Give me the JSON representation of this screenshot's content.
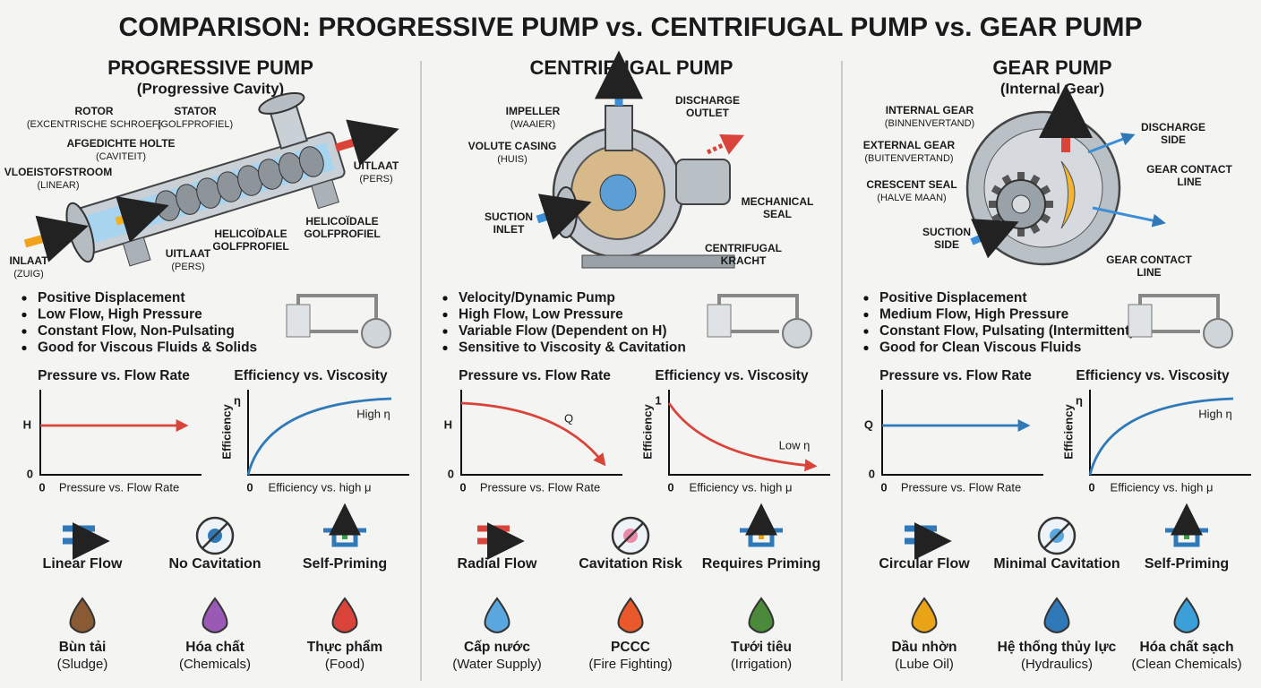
{
  "title": "COMPARISON: PROGRESSIVE PUMP vs. CENTRIFUGAL PUMP vs. GEAR PUMP",
  "columns": [
    {
      "title": "PROGRESSIVE PUMP",
      "subtitle": "(Progressive Cavity)",
      "parts": [
        {
          "label": "ROTOR",
          "sub": "(EXCENTRISCHE SCHROEF)"
        },
        {
          "label": "STATOR",
          "sub": "(GOLFPROFIEL)"
        },
        {
          "label": "AFGEDICHTE HOLTE",
          "sub": "(CAVITEIT)"
        },
        {
          "label": "VLOEISTOFSTROOM",
          "sub": "(LINEAR)"
        },
        {
          "label": "UITLAAT",
          "sub": "(PERS)"
        },
        {
          "label": "HELICOÏDALE",
          "sub": "GOLFPROFIEL"
        },
        {
          "label": "HELICOÏDALE",
          "sub": "GOLFPROFIEL"
        },
        {
          "label": "UITLAAT",
          "sub": "(PERS)"
        },
        {
          "label": "INLAAT",
          "sub": "(ZUIG)"
        }
      ],
      "bullets": [
        "Positive Displacement",
        "Low Flow, High Pressure",
        "Constant Flow, Non-Pulsating",
        "Good for Viscous Fluids & Solids"
      ],
      "charts": [
        {
          "title": "Pressure vs. Flow Rate",
          "curve": "flat",
          "color": "#d9433a",
          "y_label": "H",
          "y_zero": "0",
          "x_zero": "0",
          "caption": "Pressure vs. Flow Rate"
        },
        {
          "title": "Efficiency vs. Viscosity",
          "curve": "rising",
          "color": "#2f79b8",
          "y_label": "Efficiency",
          "y_top": "η",
          "x_zero": "0",
          "curve_label": "High η",
          "caption": "Efficiency vs. high μ"
        }
      ],
      "features": [
        "Linear Flow",
        "No Cavitation",
        "Self-Priming"
      ],
      "applications": [
        {
          "name": "Bùn tải",
          "sub": "(Sludge)"
        },
        {
          "name": "Hóa chất",
          "sub": "(Chemicals)"
        },
        {
          "name": "Thực phẩm",
          "sub": "(Food)"
        }
      ]
    },
    {
      "title": "CENTRIFUGAL PUMP",
      "parts": [
        {
          "label": "IMPELLER",
          "sub": "(WAAIER)"
        },
        {
          "label": "DISCHARGE",
          "sub": "OUTLET"
        },
        {
          "label": "VOLUTE CASING",
          "sub": "(HUIS)"
        },
        {
          "label": "MECHANICAL",
          "sub": "SEAL"
        },
        {
          "label": "SUCTION",
          "sub": "INLET"
        },
        {
          "label": "CENTRIFUGAL",
          "sub": "KRACHT"
        }
      ],
      "bullets": [
        "Velocity/Dynamic Pump",
        "High Flow, Low Pressure",
        "Variable Flow (Dependent on H)",
        "Sensitive to Viscosity & Cavitation"
      ],
      "charts": [
        {
          "title": "Pressure vs. Flow Rate",
          "curve": "falling",
          "color": "#d9433a",
          "y_label": "H",
          "y_zero": "0",
          "x_zero": "0",
          "curve_label": "Q",
          "caption": "Pressure vs. Flow Rate"
        },
        {
          "title": "Efficiency vs. Viscosity",
          "curve": "decay",
          "color": "#d9433a",
          "y_label": "Efficiency",
          "y_top": "1",
          "x_zero": "0",
          "curve_label": "Low η",
          "caption": "Efficiency vs. high μ"
        }
      ],
      "features": [
        "Radial Flow",
        "Cavitation Risk",
        "Requires Priming"
      ],
      "applications": [
        {
          "name": "Cấp nước",
          "sub": "(Water Supply)"
        },
        {
          "name": "PCCC",
          "sub": "(Fire Fighting)"
        },
        {
          "name": "Tưới tiêu",
          "sub": "(Irrigation)"
        }
      ]
    },
    {
      "title": "GEAR PUMP",
      "subtitle": "(Internal Gear)",
      "parts": [
        {
          "label": "INTERNAL GEAR",
          "sub": "(BINNENVERTAND)"
        },
        {
          "label": "DISCHARGE",
          "sub": "SIDE"
        },
        {
          "label": "EXTERNAL GEAR",
          "sub": "(BUITENVERTAND)"
        },
        {
          "label": "CRESCENT SEAL",
          "sub": "(HALVE MAAN)"
        },
        {
          "label": "GEAR CONTACT",
          "sub": "LINE"
        },
        {
          "label": "SUCTION",
          "sub": "SIDE"
        },
        {
          "label": "GEAR CONTACT",
          "sub": "LINE"
        }
      ],
      "bullets": [
        "Positive Displacement",
        "Medium Flow, High Pressure",
        "Constant Flow, Pulsating (Intermittent)",
        "Good for Clean Viscous Fluids"
      ],
      "charts": [
        {
          "title": "Pressure vs. Flow Rate",
          "curve": "flat",
          "color": "#2f79b8",
          "y_label": "Q",
          "y_zero": "0",
          "x_zero": "0",
          "caption": "Pressure vs. Flow Rate"
        },
        {
          "title": "Efficiency vs. Viscosity",
          "curve": "rising",
          "color": "#2f79b8",
          "y_label": "Efficiency",
          "y_top": "η",
          "x_zero": "0",
          "curve_label": "High η",
          "caption": "Efficiency vs. high μ"
        }
      ],
      "features": [
        "Circular Flow",
        "Minimal Cavitation",
        "Self-Priming"
      ],
      "applications": [
        {
          "name": "Dầu nhờn",
          "sub": "(Lube Oil)"
        },
        {
          "name": "Hệ thống thủy lực",
          "sub": "(Hydraulics)"
        },
        {
          "name": "Hóa chất sạch",
          "sub": "(Clean Chemicals)"
        }
      ]
    }
  ]
}
